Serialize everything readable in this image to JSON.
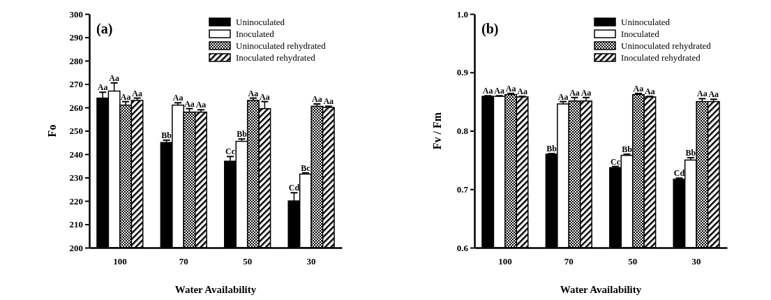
{
  "chart_data": [
    {
      "type": "bar",
      "title": "(a)",
      "xlabel": "Water Availability",
      "ylabel": "Fo",
      "categories": [
        "100",
        "70",
        "50",
        "30"
      ],
      "ylim": [
        200,
        300
      ],
      "yticks": [
        200,
        210,
        220,
        230,
        240,
        250,
        260,
        270,
        280,
        290,
        300
      ],
      "legend": "top right",
      "grid": false,
      "series": [
        {
          "name": "Uninoculated",
          "color": "#000000",
          "values": [
            264,
            245,
            237,
            220
          ],
          "errors": [
            2.5,
            1,
            2,
            3.5
          ],
          "value_labels": [
            "Aa",
            "Bb",
            "Cc",
            "Cd"
          ]
        },
        {
          "name": "Inoculated",
          "color": "#ffffff",
          "values": [
            267,
            261,
            245.5,
            231.5
          ],
          "errors": [
            3.5,
            1,
            1,
            0.5
          ],
          "value_labels": [
            "Aa",
            "Aa",
            "Bb",
            "Bc"
          ]
        },
        {
          "name": "Uninoculated rehydrated",
          "color": "#000000",
          "values": [
            261,
            258,
            263,
            260.5
          ],
          "errors": [
            1.5,
            1.5,
            1,
            1
          ],
          "value_labels": [
            "Aa",
            "Aa",
            "Aa",
            "Aa"
          ]
        },
        {
          "name": "Inoculated rehydrated",
          "color": "#000000",
          "values": [
            263,
            258,
            259.5,
            260
          ],
          "errors": [
            1,
            1,
            3,
            0.5
          ],
          "value_labels": [
            "Aa",
            "Aa",
            "Aa",
            "Aa"
          ]
        }
      ]
    },
    {
      "type": "bar",
      "title": "(b)",
      "xlabel": "Water Availability",
      "ylabel": "Fv / Fm",
      "categories": [
        "100",
        "70",
        "50",
        "30"
      ],
      "ylim": [
        0.6,
        1.0
      ],
      "yticks": [
        {
          "value": 0.6,
          "label": "0.6"
        },
        {
          "value": 0.7,
          "label": "0.7"
        },
        {
          "value": 0.8,
          "label": "0.8"
        },
        {
          "value": 0.9,
          "label": "0.9"
        },
        {
          "value": 1.0,
          "label": "1.0"
        }
      ],
      "legend": "top right",
      "grid": false,
      "series": [
        {
          "name": "Uninoculated",
          "color": "#000000",
          "values": [
            0.859,
            0.76,
            0.737,
            0.717
          ],
          "errors": [
            0.001,
            0.001,
            0.002,
            0.002
          ],
          "value_labels": [
            "Aa",
            "Bb",
            "Cc",
            "Cd"
          ]
        },
        {
          "name": "Inoculated",
          "color": "#ffffff",
          "values": [
            0.859,
            0.846,
            0.758,
            0.75
          ],
          "errors": [
            0.001,
            0.004,
            0.002,
            0.004
          ],
          "value_labels": [
            "Aa",
            "Aa",
            "Bb",
            "Bb"
          ]
        },
        {
          "name": "Uninoculated rehydrated",
          "color": "#000000",
          "values": [
            0.862,
            0.851,
            0.862,
            0.85
          ],
          "errors": [
            0.002,
            0.006,
            0.002,
            0.005
          ],
          "value_labels": [
            "Aa",
            "Aa",
            "Aa",
            "Aa"
          ]
        },
        {
          "name": "Inoculated rehydrated",
          "color": "#000000",
          "values": [
            0.858,
            0.851,
            0.858,
            0.85
          ],
          "errors": [
            0.001,
            0.006,
            0.001,
            0.004
          ],
          "value_labels": [
            "Aa",
            "Aa",
            "Aa",
            "Aa"
          ]
        }
      ]
    }
  ]
}
